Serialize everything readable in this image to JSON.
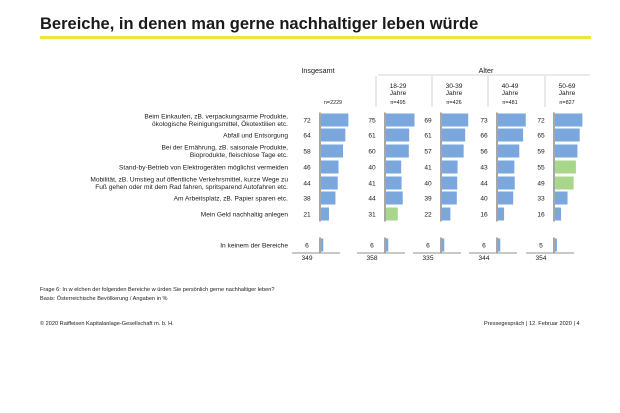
{
  "title": "Bereiche, in denen man gerne nachhaltiger leben würde",
  "colors": {
    "accent_rule": "#f2e33c",
    "bar_default": "#7aa7dd",
    "bar_highlight": "#a8d68a",
    "axis": "#222222",
    "divider": "#c8c8c8"
  },
  "chart_data": {
    "type": "bar",
    "orientation": "horizontal",
    "header_total": "Insgesamt",
    "header_group": "Alter",
    "columns": [
      {
        "label_lines": [],
        "n": "n=2229",
        "total": "349"
      },
      {
        "label_lines": [
          "18-29",
          "Jahre"
        ],
        "n": "n=495",
        "total": "358"
      },
      {
        "label_lines": [
          "30-39",
          "Jahre"
        ],
        "n": "n=426",
        "total": "335"
      },
      {
        "label_lines": [
          "40-49",
          "Jahre"
        ],
        "n": "n=481",
        "total": "344"
      },
      {
        "label_lines": [
          "50-69",
          "Jahre"
        ],
        "n": "n=827",
        "total": "354"
      }
    ],
    "categories": [
      {
        "lines": [
          "Beim Einkaufen, zB. verpackungsarme Produkte,",
          "ökologische Reinigungsmittel, Ökotextilien etc."
        ]
      },
      {
        "lines": [
          "Abfall und Entsorgung"
        ]
      },
      {
        "lines": [
          "Bei der Ernährung, zB. saisonale Produkte,",
          "Bioprodukte, fleischlose Tage etc."
        ]
      },
      {
        "lines": [
          "Stand-by-Betrieb von Elektrogeräten möglichst vermeiden"
        ]
      },
      {
        "lines": [
          "Mobilität, zB. Umstieg auf öffentliche Verkehrsmittel, kurze Wege zu",
          "Fuß gehen oder mit dem Rad fahren, spritsparend Autofahren etc."
        ]
      },
      {
        "lines": [
          "Am Arbeitsplatz, zB. Papier sparen etc."
        ]
      },
      {
        "lines": [
          "Mein Geld nachhaltig anlegen"
        ]
      },
      {
        "lines": [
          "In keinem der Bereiche"
        ]
      }
    ],
    "values": [
      [
        72,
        75,
        69,
        73,
        72
      ],
      [
        64,
        61,
        61,
        66,
        65
      ],
      [
        58,
        60,
        57,
        56,
        59
      ],
      [
        46,
        40,
        41,
        43,
        55
      ],
      [
        44,
        41,
        40,
        44,
        49
      ],
      [
        38,
        44,
        39,
        40,
        33
      ],
      [
        21,
        31,
        22,
        16,
        16
      ],
      [
        6,
        6,
        6,
        6,
        5
      ]
    ],
    "highlighted": [
      [
        3,
        4
      ],
      [
        4,
        4
      ],
      [
        6,
        1
      ]
    ],
    "unit": "%"
  },
  "footer": {
    "question": "Frage 6: In w elchen der folgenden Bereiche w ürden Sie persönlich gerne nachhaltiger leben?",
    "basis": "Basis: Österreichische Bevölkerung / Angaben in %",
    "copyright": "© 2020 Raiffeisen Kapitalanlage-Gesellschaft m. b. H.",
    "event": "Pressegespräch | 12. Februar 2020  |  4"
  }
}
